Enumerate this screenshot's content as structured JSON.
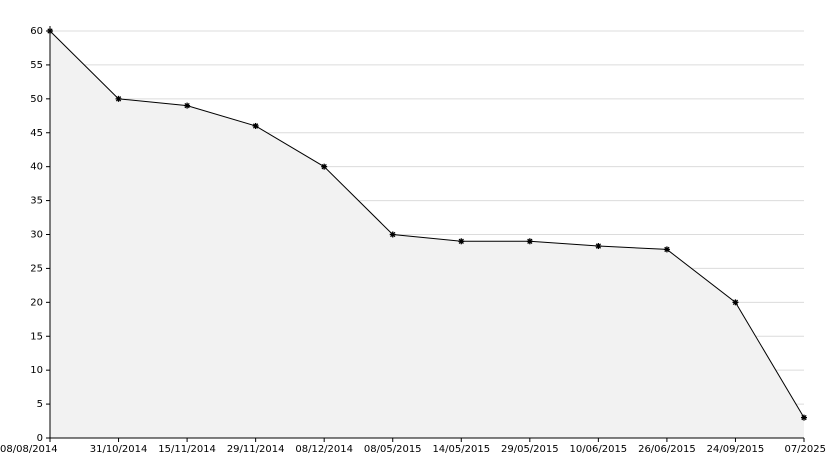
{
  "chart_data": {
    "type": "area",
    "categories": [
      "08/08/2014",
      "31/10/2014",
      "15/11/2014",
      "29/11/2014",
      "08/12/2014",
      "08/05/2015",
      "14/05/2015",
      "29/05/2015",
      "10/06/2015",
      "26/06/2015",
      "24/09/2015",
      "07/2025"
    ],
    "values": [
      60,
      50,
      49,
      46,
      40,
      30,
      29,
      29,
      28.3,
      27.8,
      20,
      3
    ],
    "color": "#000000",
    "fill": "#f2f2f2",
    "ylim": [
      0,
      60
    ],
    "yticks": [
      0,
      5,
      10,
      15,
      20,
      25,
      30,
      35,
      40,
      45,
      50,
      55,
      60
    ],
    "grid": true
  }
}
